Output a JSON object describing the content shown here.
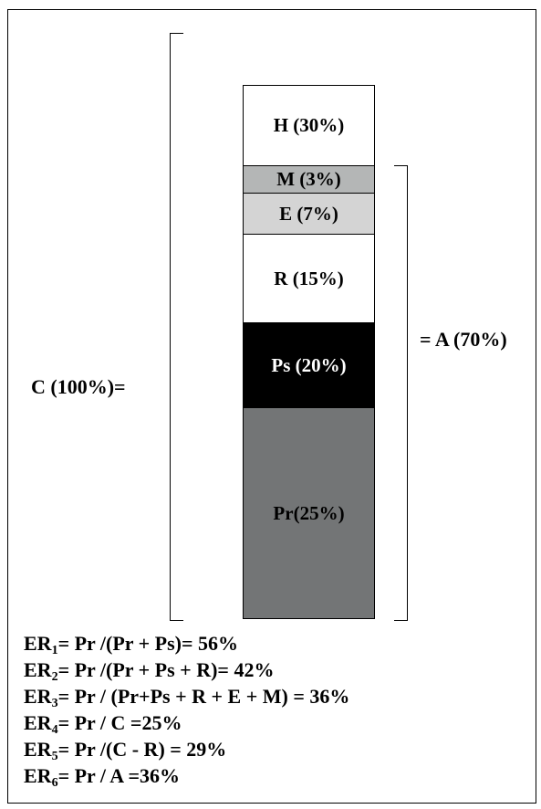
{
  "segments": [
    {
      "id": "h",
      "label": "H (30%)",
      "fill": "#ffffff",
      "text_color": "#000000"
    },
    {
      "id": "m",
      "label": "M (3%)",
      "fill": "#b4b6b6",
      "text_color": "#000000"
    },
    {
      "id": "e",
      "label": "E (7%)",
      "fill": "#d4d4d4",
      "text_color": "#000000"
    },
    {
      "id": "r",
      "label": "R (15%)",
      "fill": "#ffffff",
      "text_color": "#000000"
    },
    {
      "id": "ps",
      "label": "Ps (20%)",
      "fill": "#000000",
      "text_color": "#ffffff"
    },
    {
      "id": "pr",
      "label": "Pr(25%)",
      "fill": "#737576",
      "text_color": "#000000"
    }
  ],
  "labels": {
    "c_total": "C (100%)=",
    "a_total": "= A (70%)"
  },
  "formulas": [
    {
      "prefix": "ER",
      "sub": "1",
      "rest": "= Pr /(Pr + Ps)= 56%"
    },
    {
      "prefix": "ER",
      "sub": "2",
      "rest": "= Pr /(Pr + Ps + R)= 42%"
    },
    {
      "prefix": "ER",
      "sub": "3",
      "rest": "= Pr / (Pr+Ps + R + E + M) = 36%"
    },
    {
      "prefix": "ER",
      "sub": "4",
      "rest": "= Pr / C =25%"
    },
    {
      "prefix": "ER",
      "sub": "5",
      "rest": "= Pr /(C - R) = 29%"
    },
    {
      "prefix": "ER",
      "sub": "6",
      "rest": "= Pr / A =36%"
    }
  ]
}
